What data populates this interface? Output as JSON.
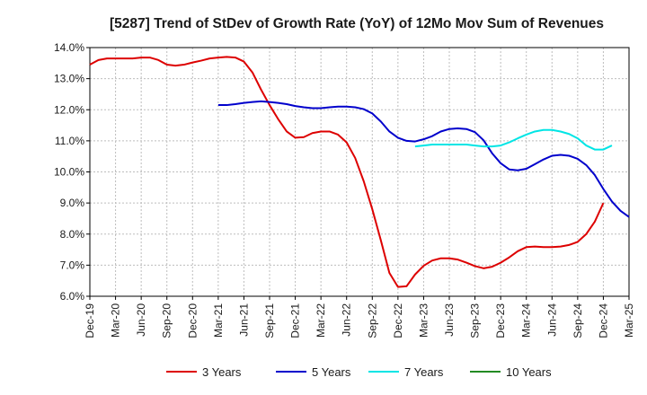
{
  "chart_data": {
    "type": "line",
    "title": "[5287]  Trend of StDev of Growth Rate (YoY) of 12Mo Mov Sum of Revenues",
    "xlabel": "",
    "ylabel": "",
    "ylim": [
      6.0,
      14.0
    ],
    "y_ticks": [
      "6.0%",
      "7.0%",
      "8.0%",
      "9.0%",
      "10.0%",
      "11.0%",
      "12.0%",
      "13.0%",
      "14.0%"
    ],
    "y_tick_values": [
      6,
      7,
      8,
      9,
      10,
      11,
      12,
      13,
      14
    ],
    "x_tick_labels": [
      "Dec-19",
      "Mar-20",
      "Jun-20",
      "Sep-20",
      "Dec-20",
      "Mar-21",
      "Jun-21",
      "Sep-21",
      "Dec-21",
      "Mar-22",
      "Jun-22",
      "Sep-22",
      "Dec-22",
      "Mar-23",
      "Jun-23",
      "Sep-23",
      "Dec-23",
      "Mar-24",
      "Jun-24",
      "Sep-24",
      "Dec-24",
      "Mar-25"
    ],
    "grid": true,
    "legend_position": "bottom",
    "series": [
      {
        "name": "3 Years",
        "color": "#dd0000",
        "start_index": 0,
        "values": [
          13.45,
          13.6,
          13.65,
          13.65,
          13.65,
          13.65,
          13.68,
          13.68,
          13.6,
          13.45,
          13.42,
          13.45,
          13.52,
          13.58,
          13.65,
          13.68,
          13.7,
          13.68,
          13.55,
          13.2,
          12.65,
          12.15,
          11.7,
          11.3,
          11.1,
          11.12,
          11.25,
          11.3,
          11.3,
          11.2,
          10.95,
          10.45,
          9.7,
          8.8,
          7.8,
          6.75,
          6.3,
          6.32,
          6.7,
          6.98,
          7.15,
          7.22,
          7.22,
          7.18,
          7.08,
          6.97,
          6.9,
          6.95,
          7.08,
          7.25,
          7.45,
          7.58,
          7.6,
          7.58,
          7.58,
          7.6,
          7.65,
          7.75,
          8.0,
          8.4,
          9.0
        ]
      },
      {
        "name": "5 Years",
        "color": "#0000cc",
        "start_index": 15,
        "values": [
          12.15,
          12.15,
          12.18,
          12.22,
          12.25,
          12.27,
          12.25,
          12.22,
          12.18,
          12.12,
          12.08,
          12.05,
          12.05,
          12.08,
          12.1,
          12.1,
          12.08,
          12.02,
          11.88,
          11.62,
          11.3,
          11.1,
          11.0,
          10.98,
          11.05,
          11.15,
          11.3,
          11.38,
          11.4,
          11.38,
          11.28,
          11.02,
          10.6,
          10.28,
          10.08,
          10.05,
          10.1,
          10.25,
          10.4,
          10.52,
          10.55,
          10.52,
          10.42,
          10.22,
          9.9,
          9.45,
          9.05,
          8.75,
          8.55
        ]
      },
      {
        "name": "7 Years",
        "color": "#00e5e5",
        "start_index": 38,
        "values": [
          10.82,
          10.85,
          10.88,
          10.88,
          10.88,
          10.88,
          10.88,
          10.85,
          10.82,
          10.82,
          10.85,
          10.95,
          11.08,
          11.2,
          11.3,
          11.35,
          11.35,
          11.3,
          11.22,
          11.08,
          10.85,
          10.72,
          10.72,
          10.85
        ]
      },
      {
        "name": "10 Years",
        "color": "#228b22",
        "start_index": 0,
        "values": []
      }
    ]
  }
}
